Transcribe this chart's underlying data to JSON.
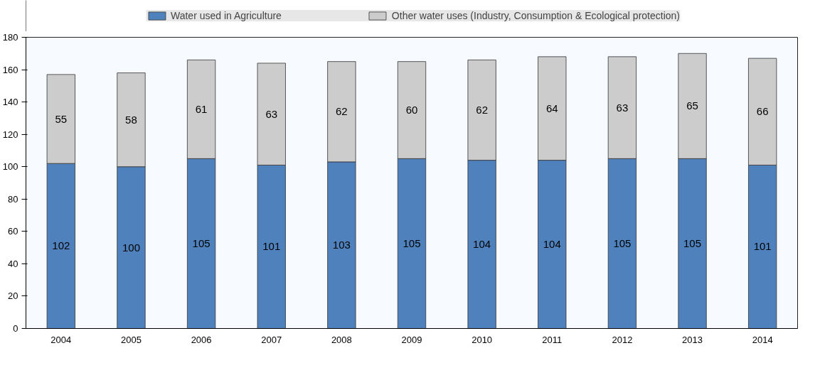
{
  "chart_data": {
    "type": "bar",
    "stacked": true,
    "data_labels": true,
    "legend": "top",
    "categories": [
      "2004",
      "2005",
      "2006",
      "2007",
      "2008",
      "2009",
      "2010",
      "2011",
      "2012",
      "2013",
      "2014"
    ],
    "ylim": [
      0,
      180
    ],
    "yticks": [
      0,
      20,
      40,
      60,
      80,
      100,
      120,
      140,
      160,
      180
    ],
    "series": [
      {
        "name": "Water used in Agriculture",
        "color": "#4f81bd",
        "values": [
          102,
          100,
          105,
          101,
          103,
          105,
          104,
          104,
          105,
          105,
          101
        ]
      },
      {
        "name": "Other water uses (Industry, Consumption & Ecological protection)",
        "color": "#cccccc",
        "values": [
          55,
          58,
          61,
          63,
          62,
          60,
          62,
          64,
          63,
          65,
          66
        ]
      }
    ]
  }
}
